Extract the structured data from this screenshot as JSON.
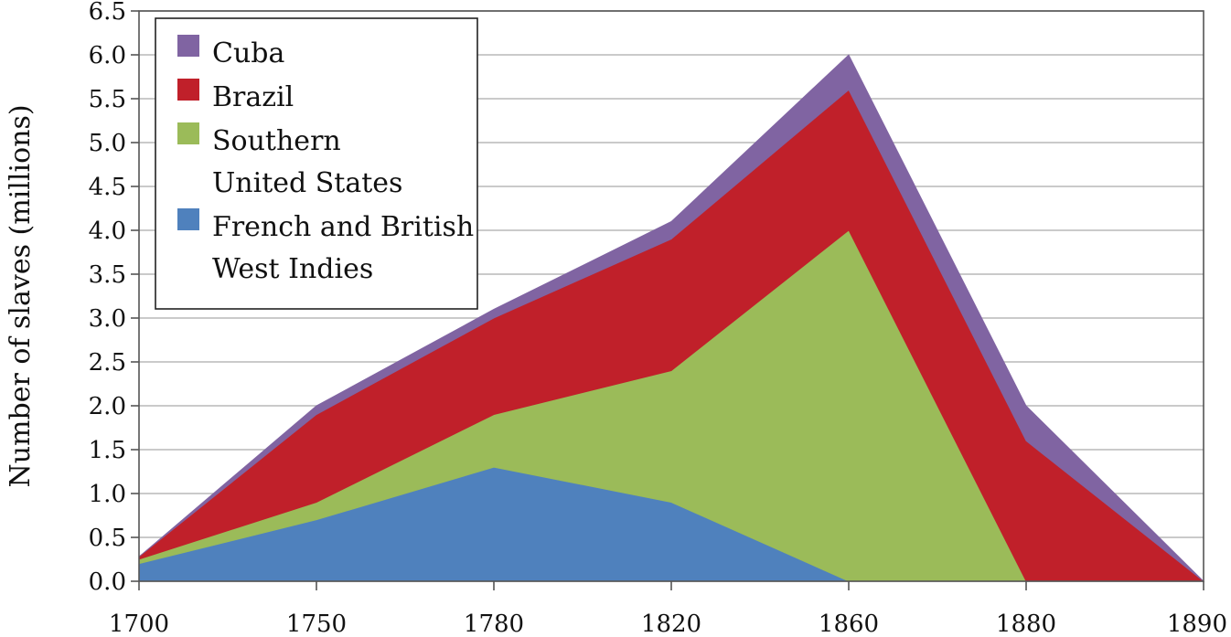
{
  "chart_data": {
    "type": "area",
    "stacked": true,
    "x": [
      "1700",
      "1750",
      "1780",
      "1820",
      "1860",
      "1880",
      "1890"
    ],
    "series": [
      {
        "name": "French and British West Indies",
        "legend_lines": [
          "French and British",
          "West Indies"
        ],
        "color": "#4f81bd",
        "values": [
          0.2,
          0.7,
          1.3,
          0.9,
          0.0,
          0.0,
          0.0
        ]
      },
      {
        "name": "Southern United States",
        "legend_lines": [
          "Southern",
          "United States"
        ],
        "color": "#9bbb59",
        "values": [
          0.05,
          0.2,
          0.6,
          1.5,
          4.0,
          0.0,
          0.0
        ]
      },
      {
        "name": "Brazil",
        "legend_lines": [
          "Brazil"
        ],
        "color": "#c0202a",
        "values": [
          0.03,
          1.0,
          1.1,
          1.5,
          1.6,
          1.6,
          0.0
        ]
      },
      {
        "name": "Cuba",
        "legend_lines": [
          "Cuba"
        ],
        "color": "#8064a2",
        "values": [
          0.0,
          0.1,
          0.1,
          0.2,
          0.4,
          0.4,
          0.0
        ]
      }
    ],
    "legend_order": [
      "Cuba",
      "Brazil",
      "Southern United States",
      "French and British West Indies"
    ],
    "ylabel": "Number of slaves (millions)",
    "xlabel": "",
    "title": "",
    "ylim": [
      0,
      6.5
    ],
    "yticks": [
      "0.0",
      "0.5",
      "1.0",
      "1.5",
      "2.0",
      "2.5",
      "3.0",
      "3.5",
      "4.0",
      "4.5",
      "5.0",
      "5.5",
      "6.0",
      "6.5"
    ],
    "grid": true,
    "legend_position": "top-left"
  }
}
